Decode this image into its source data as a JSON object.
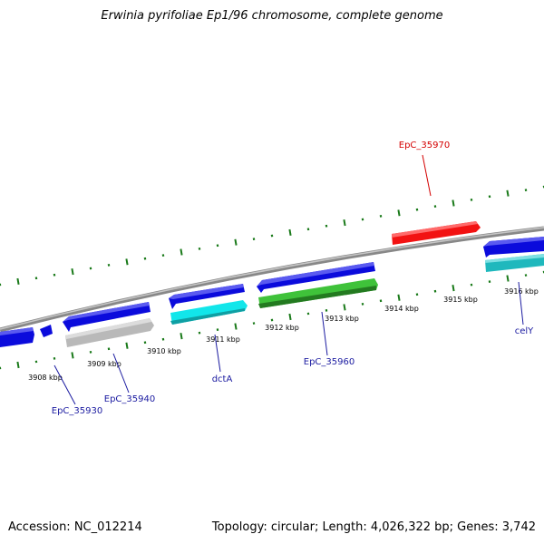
{
  "title": "Erwinia pyrifoliae Ep1/96 chromosome, complete genome",
  "footer": {
    "accession": "Accession: NC_012214",
    "stats": "Topology: circular; Length: 4,026,322 bp; Genes: 3,742"
  },
  "colors": {
    "gene_blue": "#0b0bdc",
    "gene_cyan": "#12e6ea",
    "gene_teal": "#1fb8bd",
    "gene_gray": "#b9b9b9",
    "gene_green": "#3fc23a",
    "gene_red": "#f21212",
    "backbone": "#888888",
    "ticks": "#1a7a1a",
    "label_blue": "#1a1aa0",
    "label_red": "#d40000"
  },
  "kbp_ticks": [
    "3908 kbp",
    "3909 kbp",
    "3910 kbp",
    "3911 kbp",
    "3912 kbp",
    "3913 kbp",
    "3914 kbp",
    "3915 kbp",
    "3916 kbp"
  ],
  "gene_labels": [
    "EpC_35970",
    "EpC_35930",
    "EpC_35940",
    "dctA",
    "EpC_35960",
    "celY"
  ]
}
